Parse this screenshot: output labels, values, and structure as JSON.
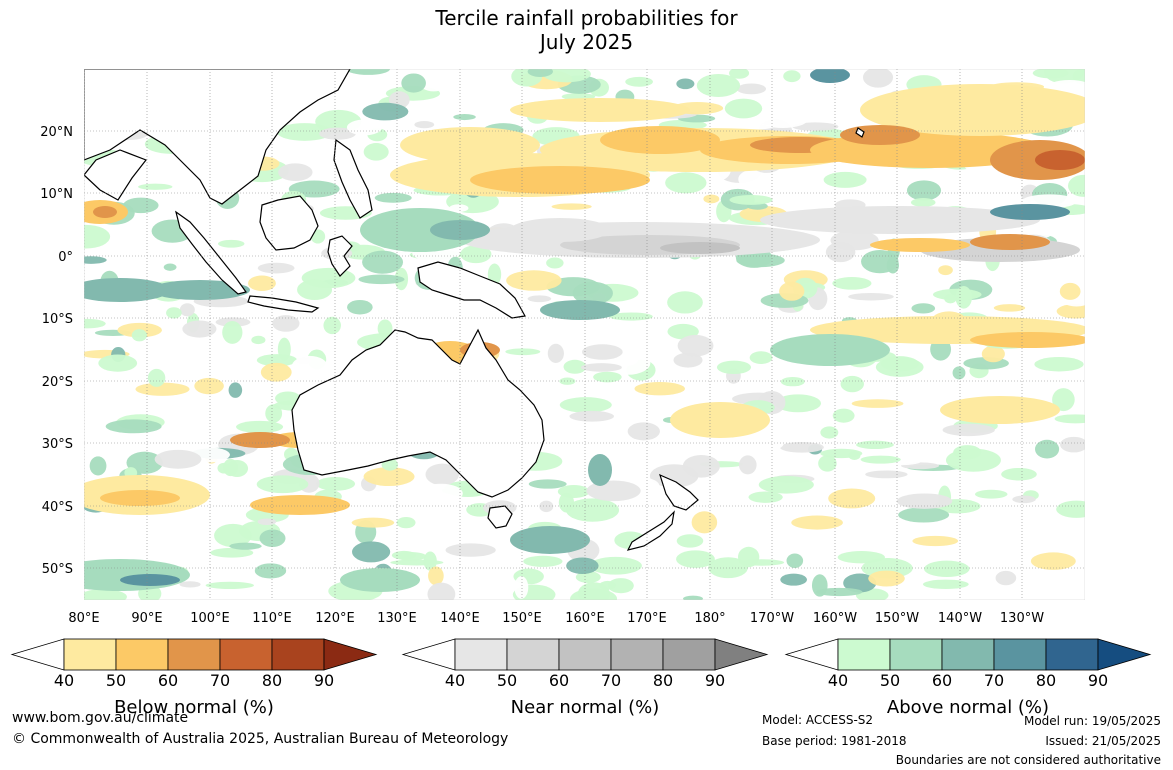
{
  "title": {
    "line1": "Tercile rainfall probabilities for",
    "line2": "July 2025"
  },
  "map": {
    "lat_labels": [
      "20°N",
      "10°N",
      "0°",
      "10°S",
      "20°S",
      "30°S",
      "40°S",
      "50°S"
    ],
    "lon_labels": [
      "80°E",
      "90°E",
      "100°E",
      "110°E",
      "120°E",
      "130°E",
      "140°E",
      "150°E",
      "160°E",
      "170°E",
      "180°",
      "170°W",
      "160°W",
      "150°W",
      "140°W",
      "130°W"
    ]
  },
  "colorbars": [
    {
      "title": "Below normal (%)",
      "ticks": [
        "40",
        "50",
        "60",
        "70",
        "80",
        "90"
      ],
      "colors": [
        "#ffffff",
        "#feeaa0",
        "#fcc966",
        "#e1954a",
        "#c8622f",
        "#a9431e",
        "#8b2a13"
      ]
    },
    {
      "title": "Near normal (%)",
      "ticks": [
        "40",
        "50",
        "60",
        "70",
        "80",
        "90"
      ],
      "colors": [
        "#ffffff",
        "#e6e6e6",
        "#d4d4d4",
        "#c2c2c2",
        "#b2b2b2",
        "#a0a0a0",
        "#808080"
      ]
    },
    {
      "title": "Above normal (%)",
      "ticks": [
        "40",
        "50",
        "60",
        "70",
        "80",
        "90"
      ],
      "colors": [
        "#ffffff",
        "#ccfad0",
        "#a6dcbe",
        "#82b9ae",
        "#5a94a0",
        "#30658f",
        "#154d80"
      ]
    }
  ],
  "footer": {
    "website": "www.bom.gov.au/climate",
    "copyright": "© Commonwealth of Australia 2025, Australian Bureau of Meteorology",
    "model": "Model: ACCESS-S2",
    "base_period": "Base period: 1981-2018",
    "model_run": "Model run: 19/05/2025",
    "issued": "Issued: 21/05/2025",
    "disclaimer": "Boundaries are not considered authoritative"
  }
}
